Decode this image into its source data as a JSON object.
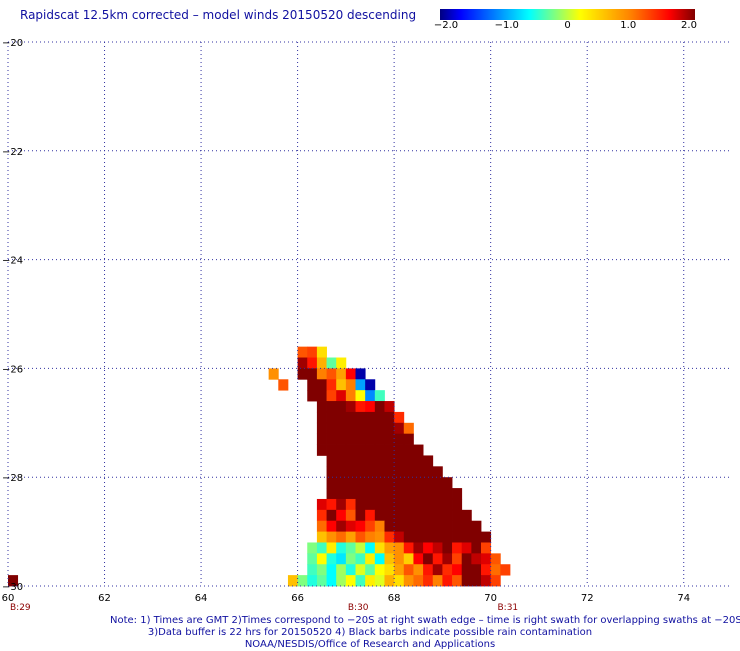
{
  "title": "Rapidscat 12.5km corrected – model winds 20150520 descending",
  "colors": {
    "background": "#ffffff",
    "text": "#1010a0",
    "grid": "#3030a0",
    "orbit_label": "#8b0000"
  },
  "colorbar": {
    "range": [
      -2.0,
      2.0
    ],
    "ticks": [
      {
        "value": -2.0,
        "label": "−2.0"
      },
      {
        "value": -1.0,
        "label": "−1.0"
      },
      {
        "value": 0,
        "label": "0"
      },
      {
        "value": 1.0,
        "label": "1.0"
      },
      {
        "value": 2.0,
        "label": "2.0"
      }
    ],
    "colors": [
      "#000080",
      "#0000ff",
      "#00ffff",
      "#ffff00",
      "#ff0000",
      "#800000"
    ]
  },
  "chart_data": {
    "type": "heatmap",
    "title": "Rapidscat 12.5km corrected – model winds 20150520 descending",
    "xlim": [
      60,
      75
    ],
    "ylim": [
      -30,
      -20
    ],
    "x_ticks": [
      {
        "value": 60,
        "label": "60"
      },
      {
        "value": 62,
        "label": "62"
      },
      {
        "value": 64,
        "label": "64"
      },
      {
        "value": 66,
        "label": "66"
      },
      {
        "value": 68,
        "label": "68"
      },
      {
        "value": 70,
        "label": "70"
      },
      {
        "value": 72,
        "label": "72"
      },
      {
        "value": 74,
        "label": "74"
      }
    ],
    "y_ticks": [
      {
        "value": -20,
        "label": "−20"
      },
      {
        "value": -22,
        "label": "−22"
      },
      {
        "value": -24,
        "label": "−24"
      },
      {
        "value": -26,
        "label": "−26"
      },
      {
        "value": -28,
        "label": "−28"
      },
      {
        "value": -30,
        "label": "−30"
      }
    ],
    "grid": true,
    "grid_style": "dotted",
    "orbit_labels": [
      {
        "lon": 60.0,
        "text": "B:29"
      },
      {
        "lon": 67.0,
        "text": "B:30"
      },
      {
        "lon": 70.1,
        "text": "B:31"
      }
    ],
    "swath": {
      "cell_size_deg": 0.2,
      "rows": [
        {
          "lat": -25.6,
          "lon0": 66.0,
          "values": [
            1.2,
            1.3,
            0.4
          ]
        },
        {
          "lat": -25.8,
          "lon0": 66.0,
          "values": [
            1.9,
            1.5,
            0.7,
            -0.3,
            0.3
          ]
        },
        {
          "lat": -26.0,
          "lon0": 65.4,
          "values": [
            0.9
          ]
        },
        {
          "lat": -26.0,
          "lon0": 66.0,
          "values": [
            2.0,
            2.0,
            1.0,
            1.2,
            0.8,
            1.6,
            -1.9
          ]
        },
        {
          "lat": -26.2,
          "lon0": 65.6,
          "values": [
            1.2
          ]
        },
        {
          "lat": -26.2,
          "lon0": 66.2,
          "values": [
            2.0,
            2.0,
            1.4,
            0.6,
            1.0,
            -1.0,
            -1.9
          ]
        },
        {
          "lat": -26.4,
          "lon0": 66.2,
          "values": [
            2.0,
            2.0,
            1.3,
            1.7,
            1.0,
            0.2,
            -1.1,
            -0.4
          ]
        },
        {
          "lat": -26.6,
          "lon0": 66.4,
          "values": [
            2.0,
            2.0,
            2.0,
            1.9,
            1.5,
            1.6,
            2.0,
            1.8
          ]
        },
        {
          "lat": -26.8,
          "lon0": 66.4,
          "values": [
            2.0,
            2.0,
            2.0,
            2.0,
            2.0,
            2.0,
            2.0,
            2.0,
            1.4
          ]
        },
        {
          "lat": -27.0,
          "lon0": 66.4,
          "values": [
            2.0,
            2.0,
            2.0,
            2.0,
            2.0,
            2.0,
            2.0,
            2.0,
            1.9,
            1.1
          ]
        },
        {
          "lat": -27.2,
          "lon0": 66.4,
          "values": [
            2.0,
            2.0,
            2.0,
            2.0,
            2.0,
            2.0,
            2.0,
            2.0,
            2.0,
            2.0
          ]
        },
        {
          "lat": -27.4,
          "lon0": 66.4,
          "values": [
            2.0,
            2.0,
            2.0,
            2.0,
            2.0,
            2.0,
            2.0,
            2.0,
            2.0,
            2.0,
            2.0
          ]
        },
        {
          "lat": -27.6,
          "lon0": 66.6,
          "values": [
            2.0,
            2.0,
            2.0,
            2.0,
            2.0,
            2.0,
            2.0,
            2.0,
            2.0,
            2.0,
            2.0
          ]
        },
        {
          "lat": -27.8,
          "lon0": 66.6,
          "values": [
            2.0,
            2.0,
            2.0,
            2.0,
            2.0,
            2.0,
            2.0,
            2.0,
            2.0,
            2.0,
            2.0,
            2.0
          ]
        },
        {
          "lat": -28.0,
          "lon0": 66.6,
          "values": [
            2.0,
            2.0,
            2.0,
            2.0,
            2.0,
            2.0,
            2.0,
            2.0,
            2.0,
            2.0,
            2.0,
            2.0,
            2.0
          ]
        },
        {
          "lat": -28.2,
          "lon0": 66.6,
          "values": [
            2.0,
            2.0,
            2.0,
            2.0,
            2.0,
            2.0,
            2.0,
            2.0,
            2.0,
            2.0,
            2.0,
            2.0,
            2.0,
            2.0
          ]
        },
        {
          "lat": -28.4,
          "lon0": 66.4,
          "values": [
            1.7,
            1.5,
            1.9,
            1.4,
            2.0,
            2.0,
            2.0,
            2.0,
            2.0,
            2.0,
            2.0,
            2.0,
            2.0,
            2.0,
            2.0
          ]
        },
        {
          "lat": -28.6,
          "lon0": 66.4,
          "values": [
            1.4,
            2.0,
            1.6,
            1.2,
            2.0,
            1.5,
            2.0,
            2.0,
            2.0,
            2.0,
            2.0,
            2.0,
            2.0,
            2.0,
            2.0,
            2.0
          ]
        },
        {
          "lat": -28.8,
          "lon0": 66.4,
          "values": [
            1.1,
            1.6,
            1.9,
            1.7,
            1.6,
            1.3,
            1.0,
            2.0,
            2.0,
            2.0,
            2.0,
            2.0,
            2.0,
            2.0,
            2.0,
            2.0,
            2.0
          ]
        },
        {
          "lat": -29.0,
          "lon0": 66.4,
          "values": [
            0.6,
            0.9,
            1.1,
            0.8,
            1.2,
            1.0,
            0.9,
            1.4,
            1.8,
            2.0,
            2.0,
            2.0,
            2.0,
            2.0,
            2.0,
            2.0,
            2.0,
            2.0
          ]
        },
        {
          "lat": -29.2,
          "lon0": 66.2,
          "values": [
            -0.2,
            -0.4,
            0.3,
            -0.5,
            -0.3,
            0.0,
            -0.6,
            0.4,
            0.8,
            0.9,
            1.5,
            1.9,
            1.6,
            1.8,
            2.0,
            1.5,
            1.7,
            2.0,
            1.3
          ]
        },
        {
          "lat": -29.4,
          "lon0": 66.2,
          "values": [
            -0.3,
            0.2,
            -0.5,
            -0.7,
            -0.2,
            -0.4,
            0.3,
            -0.6,
            0.6,
            0.9,
            0.5,
            1.6,
            2.0,
            1.5,
            1.9,
            1.3,
            2.0,
            1.8,
            1.7,
            1.2
          ]
        },
        {
          "lat": -29.6,
          "lon0": 66.2,
          "values": [
            -0.4,
            -0.2,
            -0.6,
            -0.1,
            -0.5,
            0.1,
            -0.3,
            0.2,
            0.4,
            0.8,
            1.2,
            0.9,
            1.5,
            1.9,
            1.4,
            1.6,
            2.0,
            2.0,
            1.5,
            1.1,
            1.3
          ]
        },
        {
          "lat": -29.8,
          "lon0": 65.8,
          "values": [
            0.6,
            -0.2,
            -0.5,
            -0.3,
            -0.6,
            -0.1,
            0.2,
            -0.4,
            0.3,
            0.1,
            0.7,
            0.4,
            0.9,
            1.1,
            1.4,
            1.0,
            1.5,
            1.2,
            2.0,
            2.0,
            1.8,
            1.3
          ]
        },
        {
          "lat": -30.0,
          "lon0": 65.8,
          "values": [
            0.9,
            0.2,
            -0.3,
            0.5,
            0.1,
            0.8,
            0.3,
            0.6,
            0.4,
            0.9,
            0.2,
            0.7,
            1.0,
            0.6,
            1.1,
            0.8,
            1.2,
            0.9,
            1.6,
            1.3,
            0.7,
            1.8,
            2.0
          ]
        },
        {
          "lat": -30.2,
          "lon0": 65.4,
          "values": [
            0.4,
            -0.1,
            0.3,
            0.6,
            0.2,
            0.9,
            0.5,
            0.7,
            0.3,
            0.8,
            0.5,
            1.1,
            0.6,
            0.9,
            0.4,
            1.0,
            1.3,
            0.8,
            1.2,
            0.6,
            0.9,
            0.7,
            0.5,
            1.9,
            1.2,
            0.8,
            -0.6,
            -1.9
          ]
        },
        {
          "lat": -30.4,
          "lon0": 65.4,
          "values": [
            0.3,
            0.6,
            -0.2,
            0.4,
            0.8,
            0.1,
            0.7,
            0.5,
            0.9,
            0.3,
            0.6,
            1.0,
            0.4,
            0.8,
            1.1,
            0.7,
            0.9,
            1.2,
            0.6,
            1.0,
            0.8,
            1.3,
            0.5,
            0.7,
            1.4,
            1.6,
            -1.0,
            -2.0,
            -1.7
          ]
        },
        {
          "lat": -29.8,
          "lon0": 60.0,
          "values": [
            2.0
          ]
        },
        {
          "lat": -30.0,
          "lon0": 60.0,
          "values": [
            2.0
          ]
        },
        {
          "lat": -30.2,
          "lon0": 60.0,
          "values": [
            2.0,
            2.0,
            2.0
          ]
        },
        {
          "lat": -30.4,
          "lon0": 60.0,
          "values": [
            2.0,
            2.0,
            2.0
          ]
        }
      ]
    }
  },
  "notes": [
    "Note: 1) Times are GMT 2)Times correspond to −20S at right swath edge – time is right swath for overlapping swaths at −20S",
    "3)Data buffer is 22 hrs for 20150520 4) Black barbs indicate possible rain contamination",
    "NOAA/NESDIS/Office of Research and Applications"
  ]
}
